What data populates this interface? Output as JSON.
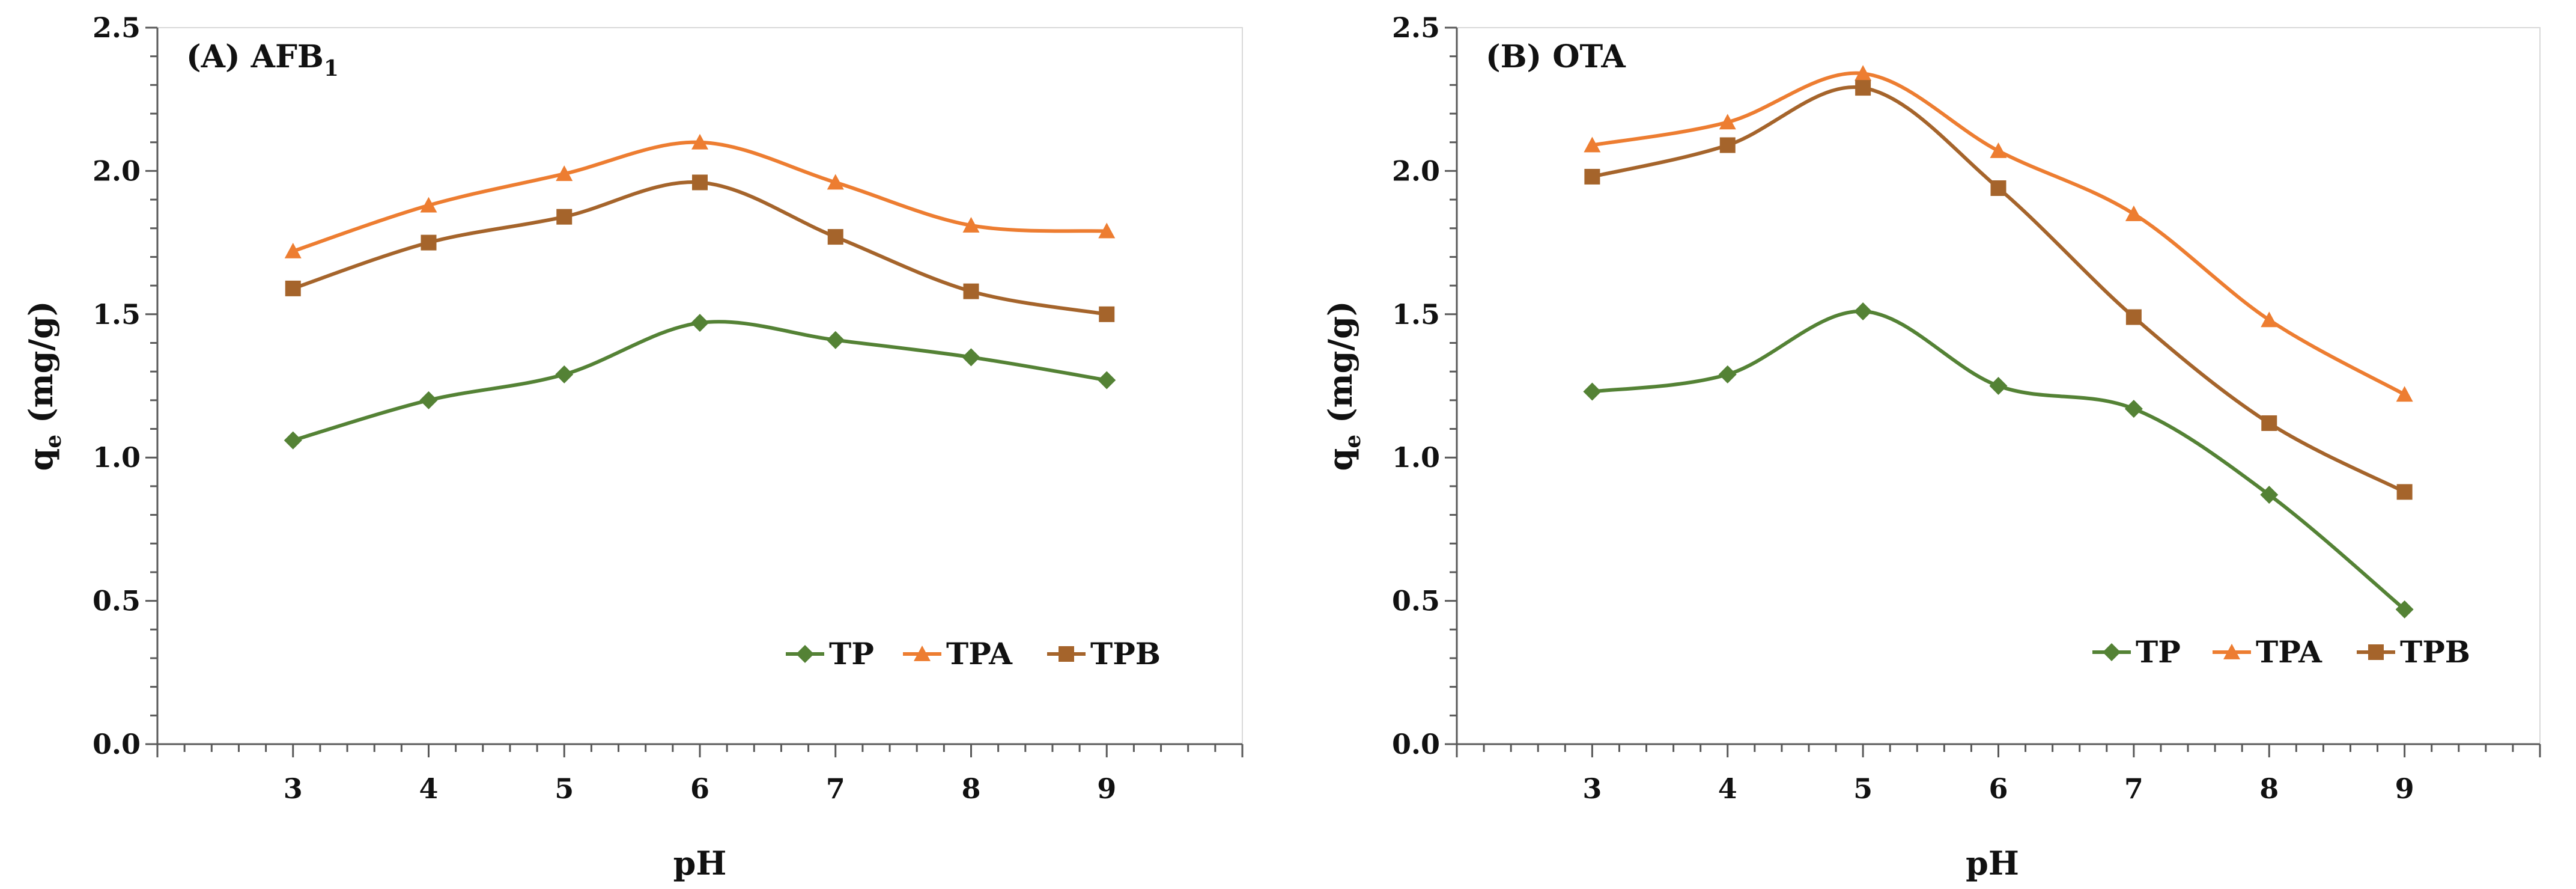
{
  "chart_data": [
    {
      "type": "line",
      "title": "(A) AFB",
      "title_sub": "1",
      "xlabel": "pH",
      "ylabel": "q",
      "ylabel_sub": "e",
      "ylabel_unit": "(mg/g)",
      "xlim": [
        2,
        10
      ],
      "ylim": [
        0,
        2.5
      ],
      "x_ticks": [
        3,
        4,
        5,
        6,
        7,
        8,
        9
      ],
      "y_ticks": [
        "0.0",
        "0.5",
        "1.0",
        "1.5",
        "2.0",
        "2.5"
      ],
      "legend_position": "bottom-right",
      "x": [
        3,
        4,
        5,
        6,
        7,
        8,
        9
      ],
      "series": [
        {
          "name": "TP",
          "color": "#548235",
          "marker": "diamond",
          "values": [
            1.06,
            1.2,
            1.29,
            1.47,
            1.41,
            1.35,
            1.27
          ]
        },
        {
          "name": "TPA",
          "color": "#ED7D31",
          "marker": "triangle",
          "values": [
            1.72,
            1.88,
            1.99,
            2.1,
            1.96,
            1.81,
            1.79
          ]
        },
        {
          "name": "TPB",
          "color": "#A5642B",
          "marker": "square",
          "values": [
            1.59,
            1.75,
            1.84,
            1.96,
            1.77,
            1.58,
            1.5
          ]
        }
      ]
    },
    {
      "type": "line",
      "title": "(B) OTA",
      "title_sub": "",
      "xlabel": "pH",
      "ylabel": "q",
      "ylabel_sub": "e",
      "ylabel_unit": "(mg/g)",
      "xlim": [
        2,
        10
      ],
      "ylim": [
        0,
        2.5
      ],
      "x_ticks": [
        3,
        4,
        5,
        6,
        7,
        8,
        9
      ],
      "y_ticks": [
        "0.0",
        "0.5",
        "1.0",
        "1.5",
        "2.0",
        "2.5"
      ],
      "legend_position": "bottom-right",
      "x": [
        3,
        4,
        5,
        6,
        7,
        8,
        9
      ],
      "series": [
        {
          "name": "TP",
          "color": "#548235",
          "marker": "diamond",
          "values": [
            1.23,
            1.29,
            1.51,
            1.25,
            1.17,
            0.87,
            0.47
          ]
        },
        {
          "name": "TPA",
          "color": "#ED7D31",
          "marker": "triangle",
          "values": [
            2.09,
            2.17,
            2.34,
            2.07,
            1.85,
            1.48,
            1.22
          ]
        },
        {
          "name": "TPB",
          "color": "#A5642B",
          "marker": "square",
          "values": [
            1.98,
            2.09,
            2.29,
            1.94,
            1.49,
            1.12,
            0.88
          ]
        }
      ]
    }
  ]
}
